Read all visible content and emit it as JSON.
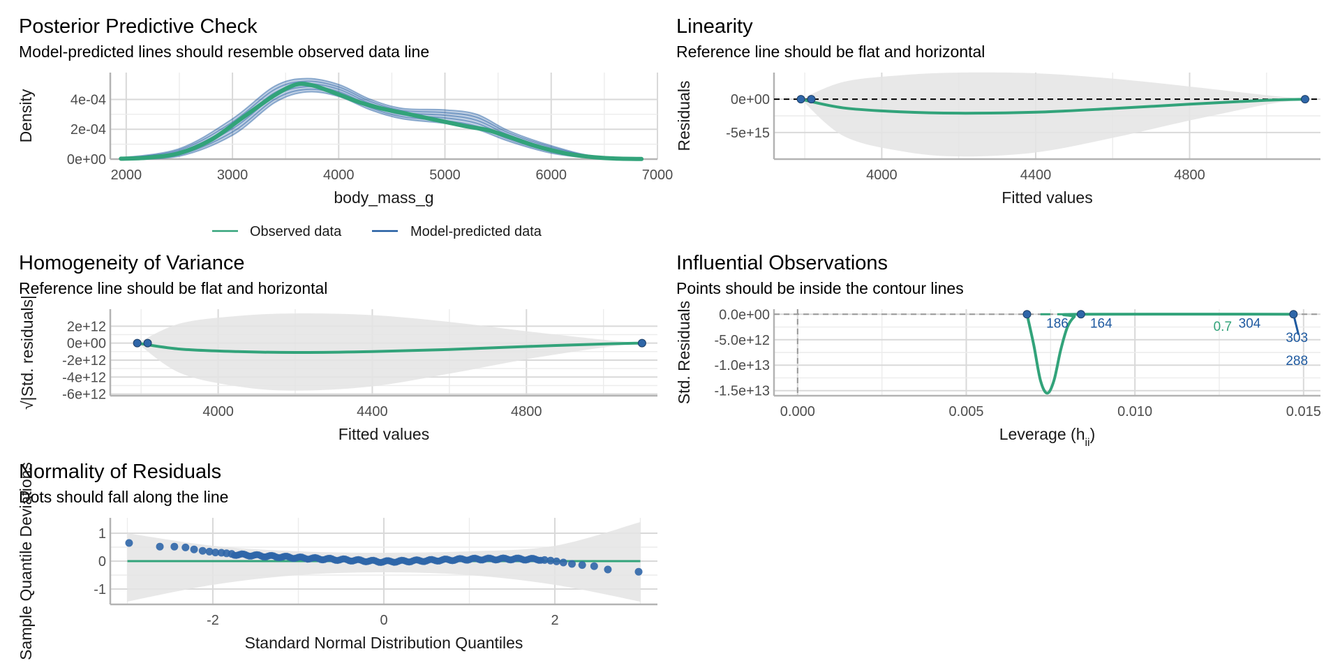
{
  "colors": {
    "observed": "#32a37a",
    "predicted": "#1f5aa0",
    "points": "#2f66a8",
    "band": "#e4e4e4",
    "grid": "#e6e6e6"
  },
  "panels": {
    "ppc": {
      "title": "Posterior Predictive Check",
      "subtitle": "Model-predicted lines should resemble observed data line",
      "legend": {
        "observed": "Observed data",
        "predicted": "Model-predicted data"
      }
    },
    "linearity": {
      "title": "Linearity",
      "subtitle": "Reference line should be flat and horizontal"
    },
    "homogeneity": {
      "title": "Homogeneity of Variance",
      "subtitle": "Reference line should be flat and horizontal"
    },
    "influential": {
      "title": "Influential Observations",
      "subtitle": "Points should be inside the contour lines"
    },
    "normality": {
      "title": "Normality of Residuals",
      "subtitle": "Dots should fall along the line"
    }
  },
  "chart_data": [
    {
      "id": "ppc",
      "type": "line",
      "xlabel": "body_mass_g",
      "ylabel": "Density",
      "xlim": [
        1850,
        7000
      ],
      "ylim": [
        0,
        0.00058
      ],
      "xticks": [
        2000,
        3000,
        4000,
        5000,
        6000,
        7000
      ],
      "xtick_labels": [
        "2000",
        "3000",
        "4000",
        "5000",
        "6000",
        "7000"
      ],
      "yticks": [
        0,
        0.0002,
        0.0004
      ],
      "ytick_labels": [
        "0e+00",
        "2e-04",
        "4e-04"
      ],
      "observed": {
        "x": [
          1950,
          2200,
          2500,
          2800,
          3100,
          3400,
          3600,
          3750,
          3900,
          4050,
          4200,
          4400,
          4600,
          4800,
          5000,
          5200,
          5400,
          5600,
          5800,
          6000,
          6200,
          6400,
          6600,
          6850
        ],
        "y": [
          3e-06,
          1e-05,
          4e-05,
          0.00013,
          0.00028,
          0.00043,
          0.0005,
          0.000495,
          0.00046,
          0.00042,
          0.00038,
          0.00034,
          0.00031,
          0.00028,
          0.00025,
          0.00022,
          0.000195,
          0.00015,
          0.0001,
          6e-05,
          3e-05,
          1.3e-05,
          4e-06,
          1e-06
        ]
      },
      "predicted_envelope": {
        "x": [
          1950,
          2500,
          3000,
          3400,
          3700,
          4000,
          4300,
          4600,
          5000,
          5300,
          5600,
          6000,
          6400,
          6850
        ],
        "lower": [
          0,
          2e-05,
          0.00016,
          0.00038,
          0.00045,
          0.00042,
          0.00033,
          0.00027,
          0.00024,
          0.0002,
          0.00012,
          4e-05,
          8e-06,
          0
        ],
        "upper": [
          8e-06,
          7e-05,
          0.00027,
          0.00049,
          0.00054,
          0.0005,
          0.0004,
          0.00034,
          0.00033,
          0.0003,
          0.00019,
          9e-05,
          2e-05,
          2e-06
        ]
      }
    },
    {
      "id": "linearity",
      "type": "line",
      "xlabel": "Fitted values",
      "ylabel": "Residuals",
      "xlim": [
        3720,
        5140
      ],
      "ylim": [
        -9000000000000000.0,
        4000000000000000.0
      ],
      "xticks": [
        4000,
        4400,
        4800
      ],
      "xtick_labels": [
        "4000",
        "4400",
        "4800"
      ],
      "yticks": [
        0,
        -5000000000000000.0
      ],
      "ytick_labels": [
        "0e+00",
        "-5e+15"
      ],
      "points": {
        "x": [
          3790,
          3817,
          5100
        ],
        "y": [
          0,
          0,
          0
        ]
      },
      "smooth": {
        "x": [
          3790,
          3900,
          4050,
          4200,
          4400,
          4600,
          4800,
          5000,
          5100
        ],
        "y": [
          0,
          -1300000000000000.0,
          -1900000000000000.0,
          -2100000000000000.0,
          -1950000000000000.0,
          -1400000000000000.0,
          -750000000000000.0,
          -150000000000000.0,
          0
        ]
      },
      "band": {
        "x": [
          3790,
          3900,
          4050,
          4200,
          4400,
          4600,
          4800,
          5000,
          5100
        ],
        "lower": [
          0,
          -5500000000000000.0,
          -7800000000000000.0,
          -8600000000000000.0,
          -8000000000000000.0,
          -5800000000000000.0,
          -3200000000000000.0,
          -800000000000000.0,
          0
        ],
        "upper": [
          0,
          2600000000000000.0,
          3600000000000000.0,
          4000000000000000.0,
          3900000000000000.0,
          3100000000000000.0,
          1900000000000000.0,
          600000000000000.0,
          0
        ]
      }
    },
    {
      "id": "homogeneity",
      "type": "line",
      "xlabel": "Fitted values",
      "ylabel": "√|Std. residuals|",
      "xlim": [
        3720,
        5140
      ],
      "ylim": [
        -6200000000000.0,
        4000000000000.0
      ],
      "xticks": [
        4000,
        4400,
        4800
      ],
      "xtick_labels": [
        "4000",
        "4400",
        "4800"
      ],
      "yticks": [
        2000000000000.0,
        0,
        -2000000000000.0,
        -4000000000000.0,
        -6000000000000.0
      ],
      "ytick_labels": [
        "2e+12",
        "0e+00",
        "-2e+12",
        "-4e+12",
        "-6e+12"
      ],
      "points": {
        "x": [
          3790,
          3817,
          5100
        ],
        "y": [
          0,
          0,
          0
        ]
      },
      "smooth": {
        "x": [
          3790,
          3900,
          4050,
          4200,
          4400,
          4600,
          4800,
          5000,
          5100
        ],
        "y": [
          0,
          -700000000000.0,
          -1000000000000.0,
          -1100000000000.0,
          -1000000000000.0,
          -750000000000.0,
          -400000000000.0,
          -100000000000.0,
          0
        ]
      },
      "band": {
        "x": [
          3790,
          3900,
          4050,
          4200,
          4400,
          4600,
          4800,
          5000,
          5100
        ],
        "lower": [
          0,
          -3500000000000.0,
          -5100000000000.0,
          -5600000000000.0,
          -5100000000000.0,
          -3600000000000.0,
          -1900000000000.0,
          -500000000000.0,
          0
        ],
        "upper": [
          0,
          2300000000000.0,
          3200000000000.0,
          3500000000000.0,
          3300000000000.0,
          2500000000000.0,
          1400000000000.0,
          400000000000.0,
          0
        ]
      }
    },
    {
      "id": "influential",
      "type": "scatter",
      "xlabel": "Leverage (h",
      "xlabel_sub": "ii",
      "xlabel_close": ")",
      "ylabel": "Std. Residuals",
      "xlim": [
        -0.0007,
        0.0155
      ],
      "ylim": [
        -16000000000000.0,
        1000000000000.0
      ],
      "xticks": [
        0,
        0.005,
        0.01,
        0.015
      ],
      "xtick_labels": [
        "0.000",
        "0.005",
        "0.010",
        "0.015"
      ],
      "yticks": [
        0,
        -5000000000000.0,
        -10000000000000.0,
        -15000000000000.0
      ],
      "ytick_labels": [
        "0.0e+00",
        "-5.0e+12",
        "-1.0e+13",
        "-1.5e+13"
      ],
      "points": {
        "x": [
          0.0068,
          0.0084,
          0.0147
        ],
        "y": [
          0,
          0,
          0
        ]
      },
      "point_labels": [
        {
          "text": "186",
          "x": 0.0077,
          "y": -1700000000000.0
        },
        {
          "text": "164",
          "x": 0.009,
          "y": -1700000000000.0
        },
        {
          "text": "304",
          "x": 0.0134,
          "y": -1700000000000.0
        },
        {
          "text": "303",
          "x": 0.0148,
          "y": -4500000000000.0
        },
        {
          "text": "288",
          "x": 0.0148,
          "y": -9000000000000.0
        }
      ],
      "contour_label": {
        "text": "0.7",
        "x": 0.0126,
        "y": -2300000000000.0
      },
      "smooth": {
        "x": [
          0.0068,
          0.007,
          0.0072,
          0.0074,
          0.0076,
          0.0078,
          0.008,
          0.0082,
          0.0084,
          0.0147
        ],
        "y": [
          0,
          -6000000000000.0,
          -13000000000000.0,
          -15500000000000.0,
          -13000000000000.0,
          -7000000000000.0,
          -2500000000000.0,
          -500000000000.0,
          0,
          0
        ]
      }
    },
    {
      "id": "normality",
      "type": "scatter",
      "xlabel": "Standard Normal Distribution Quantiles",
      "ylabel": "Sample Quantile Deviations",
      "xlim": [
        -3.2,
        3.2
      ],
      "ylim": [
        -1.55,
        1.55
      ],
      "xticks": [
        -2,
        0,
        2
      ],
      "xtick_labels": [
        "-2",
        "0",
        "2"
      ],
      "yticks": [
        1,
        0,
        -1
      ],
      "ytick_labels": [
        "1",
        "0",
        "-1"
      ],
      "ref_line": {
        "x": [
          -3,
          3
        ],
        "y": [
          0,
          0
        ]
      },
      "band": {
        "x": [
          -3,
          -2,
          -1,
          0,
          1,
          2,
          3
        ],
        "lower": [
          -1.45,
          -0.85,
          -0.5,
          -0.4,
          -0.5,
          -0.85,
          -1.45
        ],
        "upper": [
          1.0,
          0.55,
          0.35,
          0.3,
          0.35,
          0.55,
          1.4
        ]
      },
      "outer_points": {
        "x": [
          -2.98,
          -2.62,
          -2.45,
          -2.32,
          -2.22,
          -2.12,
          -2.04,
          -1.97,
          -1.9,
          -1.84,
          -1.78,
          1.88,
          1.95,
          2.02,
          2.1,
          2.2,
          2.32,
          2.46,
          2.62,
          2.98
        ],
        "y": [
          0.65,
          0.52,
          0.52,
          0.49,
          0.42,
          0.37,
          0.34,
          0.31,
          0.3,
          0.28,
          0.26,
          0.04,
          0.02,
          -0.01,
          -0.05,
          -0.1,
          -0.14,
          -0.18,
          -0.3,
          -0.38
        ]
      },
      "middle_trend": {
        "x": [
          -1.75,
          -1.0,
          -0.5,
          0.0,
          0.5,
          1.0,
          1.5,
          1.85
        ],
        "y": [
          0.24,
          0.12,
          0.05,
          -0.02,
          0.02,
          0.07,
          0.08,
          0.06
        ]
      }
    }
  ]
}
